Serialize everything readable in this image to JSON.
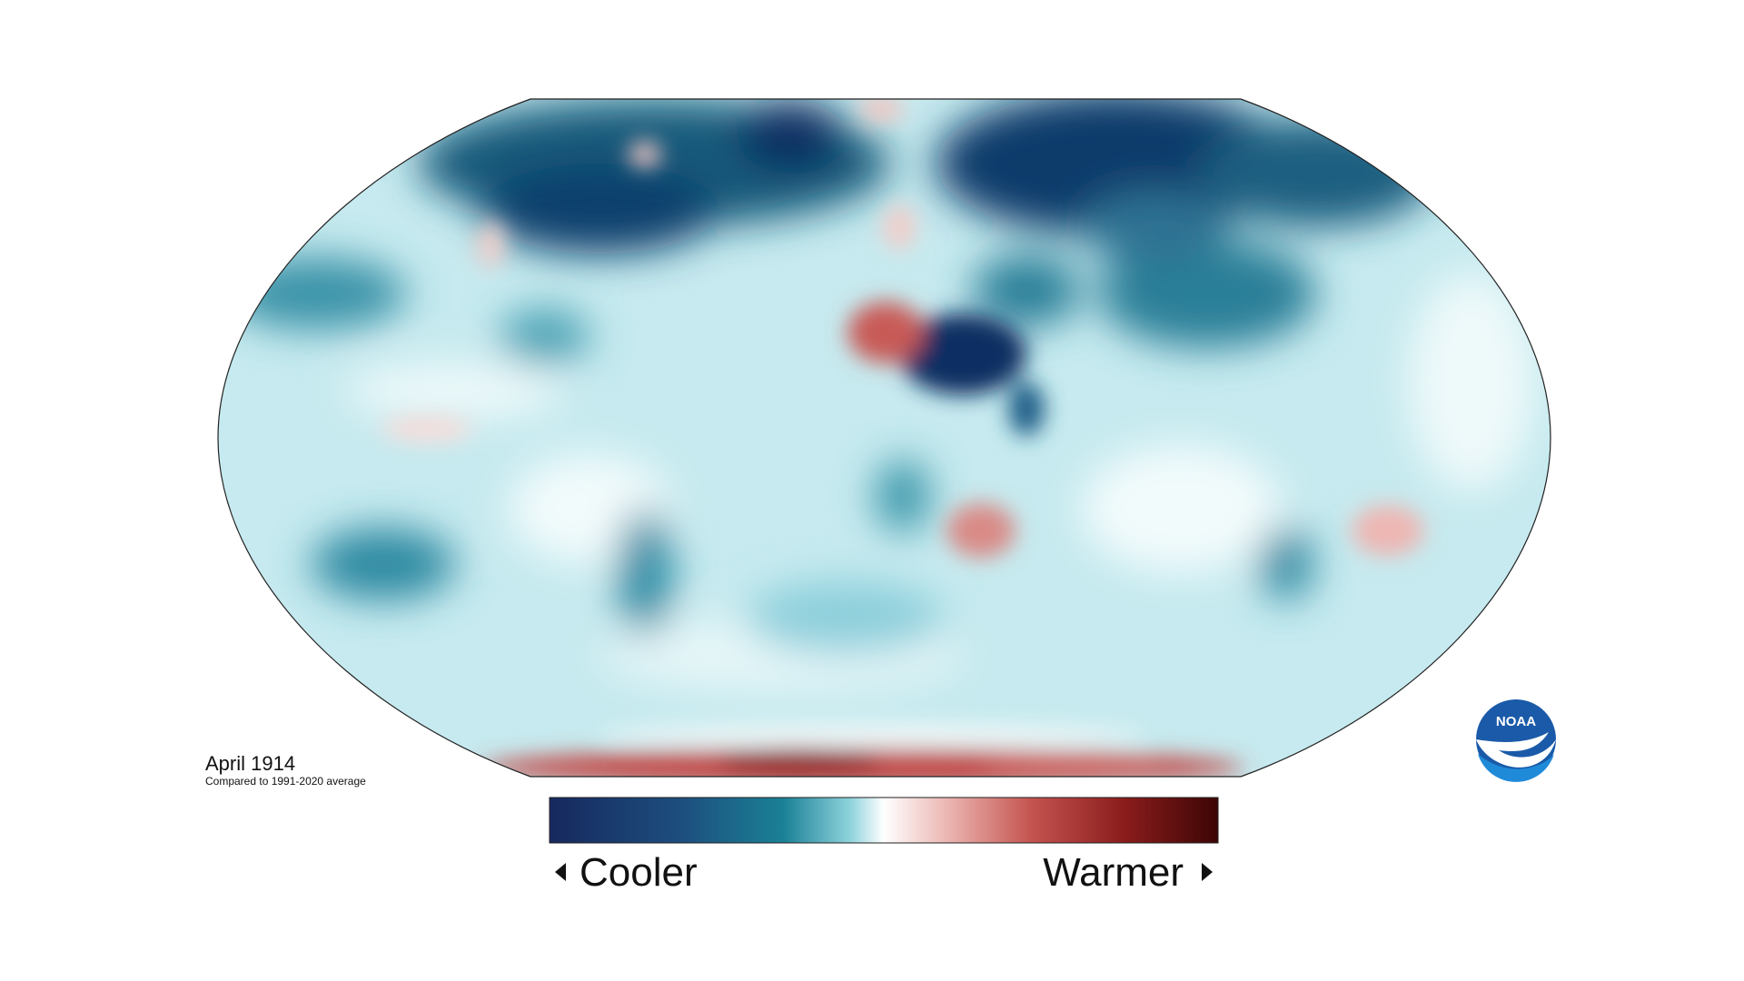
{
  "map": {
    "title": "April 1914",
    "subtitle": "Compared to 1991-2020 average",
    "legend": {
      "low": "Cooler",
      "high": "Warmer"
    }
  },
  "logo": {
    "text": "NOAA"
  }
}
